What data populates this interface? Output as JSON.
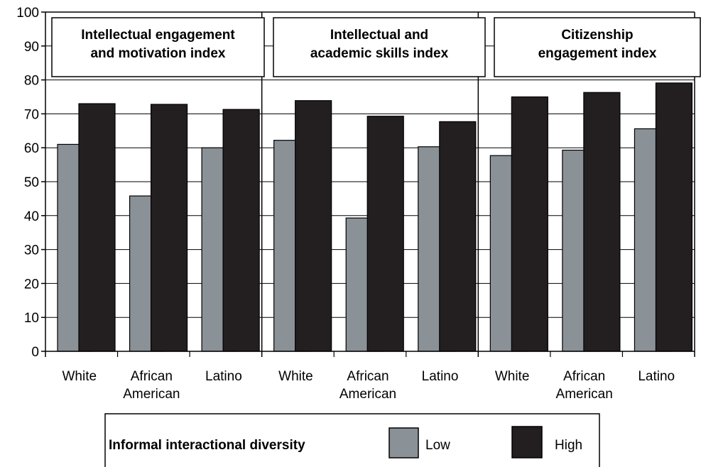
{
  "chart_data": {
    "type": "bar",
    "ylim": [
      0,
      100
    ],
    "yticks": [
      "0",
      "10",
      "20",
      "30",
      "40",
      "50",
      "60",
      "70",
      "80",
      "90",
      "100"
    ],
    "grid": true,
    "legend_position": "bottom-center",
    "colors": {
      "Low": "#8a9197",
      "High": "#231f20"
    },
    "panels": [
      {
        "title_lines": [
          "Intellectual engagement",
          "and motivation index"
        ],
        "categories": [
          [
            "White"
          ],
          [
            "African",
            "American"
          ],
          [
            "Latino"
          ]
        ],
        "series": [
          {
            "name": "Low",
            "values": [
              61,
              45.8,
              60
            ]
          },
          {
            "name": "High",
            "values": [
              73,
              72.8,
              71.3
            ]
          }
        ]
      },
      {
        "title_lines": [
          "Intellectual and",
          "academic skills index"
        ],
        "categories": [
          [
            "White"
          ],
          [
            "African",
            "American"
          ],
          [
            "Latino"
          ]
        ],
        "series": [
          {
            "name": "Low",
            "values": [
              62.2,
              39.3,
              60.3
            ]
          },
          {
            "name": "High",
            "values": [
              73.9,
              69.3,
              67.7
            ]
          }
        ]
      },
      {
        "title_lines": [
          "Citizenship",
          "engagement index"
        ],
        "categories": [
          [
            "White"
          ],
          [
            "African",
            "American"
          ],
          [
            "Latino"
          ]
        ],
        "series": [
          {
            "name": "Low",
            "values": [
              57.7,
              59.3,
              65.6
            ]
          },
          {
            "name": "High",
            "values": [
              75,
              76.3,
              79.1
            ]
          }
        ]
      }
    ],
    "legend": {
      "title": "Informal interactional diversity",
      "items": [
        "Low",
        "High"
      ]
    }
  }
}
